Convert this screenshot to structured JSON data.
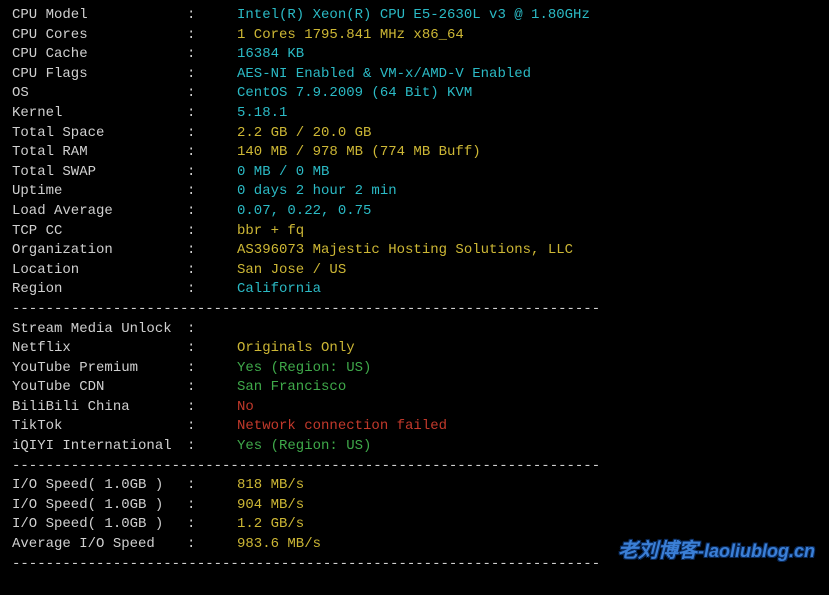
{
  "sys": [
    {
      "label": "CPU Model",
      "value": "Intel(R) Xeon(R) CPU E5-2630L v3 @ 1.80GHz",
      "cls": "val-cyan"
    },
    {
      "label": "CPU Cores",
      "value": "1 Cores 1795.841 MHz x86_64",
      "cls": "val-yellow"
    },
    {
      "label": "CPU Cache",
      "value": "16384 KB",
      "cls": "val-cyan"
    },
    {
      "label": "CPU Flags",
      "value": "AES-NI Enabled & VM-x/AMD-V Enabled",
      "cls": "val-cyan"
    },
    {
      "label": "OS",
      "value": "CentOS 7.9.2009 (64 Bit) KVM",
      "cls": "val-cyan"
    },
    {
      "label": "Kernel",
      "value": "5.18.1",
      "cls": "val-cyan"
    },
    {
      "label": "Total Space",
      "value": "2.2 GB / 20.0 GB",
      "cls": "val-yellow"
    },
    {
      "label": "Total RAM",
      "value": "140 MB / 978 MB (774 MB Buff)",
      "cls": "val-yellow"
    },
    {
      "label": "Total SWAP",
      "value": "0 MB / 0 MB",
      "cls": "val-cyan"
    },
    {
      "label": "Uptime",
      "value": "0 days 2 hour 2 min",
      "cls": "val-cyan"
    },
    {
      "label": "Load Average",
      "value": "0.07, 0.22, 0.75",
      "cls": "val-cyan"
    },
    {
      "label": "TCP CC",
      "value": "bbr + fq",
      "cls": "val-yellow"
    },
    {
      "label": "Organization",
      "value": "AS396073 Majestic Hosting Solutions, LLC",
      "cls": "val-yellow"
    },
    {
      "label": "Location",
      "value": "San Jose / US",
      "cls": "val-yellow"
    },
    {
      "label": "Region",
      "value": "California",
      "cls": "val-cyan"
    }
  ],
  "stream_header": {
    "label": "Stream Media Unlock",
    "value": "",
    "cls": "val-white"
  },
  "stream": [
    {
      "label": "Netflix",
      "value": "Originals Only",
      "cls": "val-yellow"
    },
    {
      "label": "YouTube Premium",
      "value": "Yes (Region: US)",
      "cls": "val-green"
    },
    {
      "label": "YouTube CDN",
      "value": "San Francisco",
      "cls": "val-green"
    },
    {
      "label": "BiliBili China",
      "value": "No",
      "cls": "val-red"
    },
    {
      "label": "TikTok",
      "value": "Network connection failed",
      "cls": "val-red"
    },
    {
      "label": "iQIYI International",
      "value": "Yes (Region: US)",
      "cls": "val-green"
    }
  ],
  "io": [
    {
      "label": "I/O Speed( 1.0GB )",
      "value": "818 MB/s",
      "cls": "val-yellow"
    },
    {
      "label": "I/O Speed( 1.0GB )",
      "value": "904 MB/s",
      "cls": "val-yellow"
    },
    {
      "label": "I/O Speed( 1.0GB )",
      "value": "1.2 GB/s",
      "cls": "val-yellow"
    },
    {
      "label": "Average I/O Speed",
      "value": "983.6 MB/s",
      "cls": "val-yellow"
    }
  ],
  "divider": "----------------------------------------------------------------------",
  "separator": ":",
  "watermark": {
    "main": "老刘博客",
    "sub": "-laoliublog.cn"
  },
  "colors": {
    "bg": "#000000",
    "text": "#d0d0d0",
    "cyan": "#2bbac5",
    "yellow": "#cdb735",
    "green": "#3fa94a",
    "red": "#c2392b",
    "watermark": "#3b7fd6"
  }
}
